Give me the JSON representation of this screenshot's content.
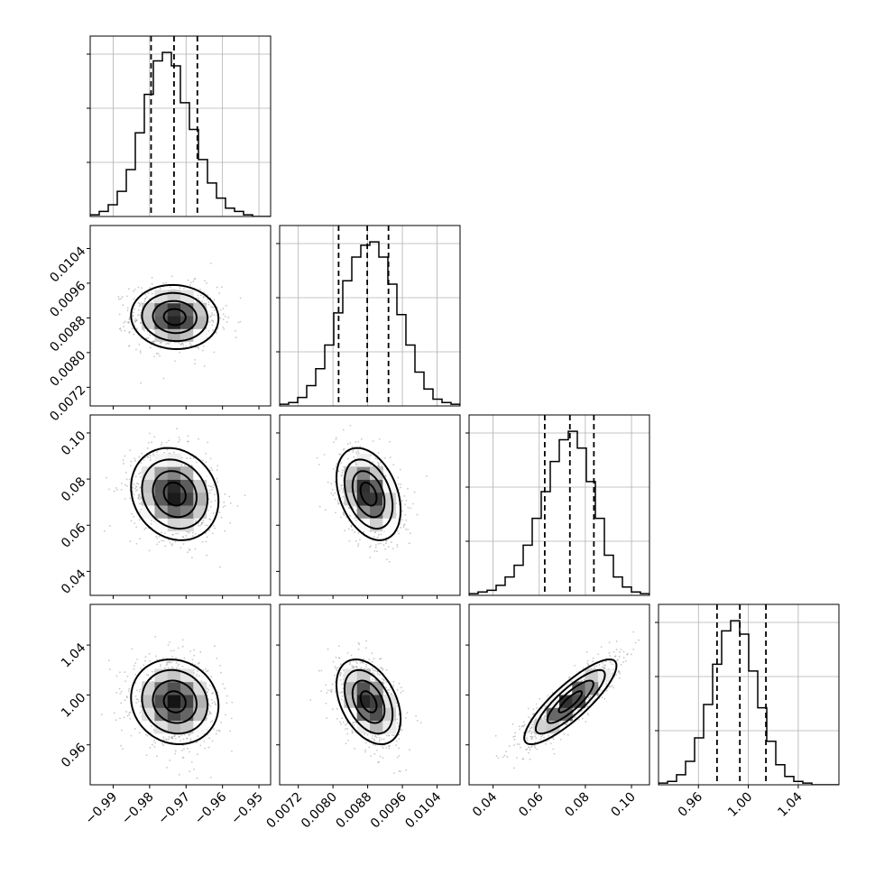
{
  "chart_data": {
    "type": "corner",
    "title": "",
    "colors": {
      "line": "#000000",
      "grid": "#b0b0b0",
      "scatter": "#9a9a9a",
      "background": "#ffffff"
    },
    "grid": true,
    "parameters": [
      {
        "index": 0,
        "label": "",
        "range": [
          -0.9963,
          -0.9468
        ],
        "ticks": [
          -0.99,
          -0.98,
          -0.97,
          -0.96,
          -0.95
        ],
        "tick_labels": [
          "−0.99",
          "−0.98",
          "−0.97",
          "−0.96",
          "−0.95"
        ],
        "mean": -0.9731,
        "sd": 0.006,
        "quantiles": [
          -0.9796,
          -0.9733,
          -0.9669
        ]
      },
      {
        "index": 1,
        "label": "",
        "range": [
          0.00677,
          0.01093
        ],
        "ticks": [
          0.0072,
          0.008,
          0.0088,
          0.0096,
          0.0104
        ],
        "tick_labels": [
          "0.0072",
          "0.0080",
          "0.0088",
          "0.0096",
          "0.0104"
        ],
        "mean": 0.00882,
        "sd": 0.00037,
        "quantiles": [
          0.00813,
          0.00879,
          0.00928
        ]
      },
      {
        "index": 2,
        "label": "",
        "range": [
          0.0296,
          0.1078
        ],
        "ticks": [
          0.04,
          0.06,
          0.08,
          0.1
        ],
        "tick_labels": [
          "0.04",
          "0.06",
          "0.08",
          "0.10"
        ],
        "mean": 0.0735,
        "sd": 0.01,
        "quantiles": [
          0.0624,
          0.0733,
          0.0837
        ]
      },
      {
        "index": 3,
        "label": "",
        "range": [
          0.928,
          1.0726
        ],
        "ticks": [
          0.96,
          1.0,
          1.04
        ],
        "tick_labels": [
          "0.96",
          "1.00",
          "1.04"
        ],
        "mean": 0.9945,
        "sd": 0.017,
        "quantiles": [
          0.9749,
          0.9932,
          1.0141
        ]
      }
    ],
    "histograms": [
      {
        "param": 0,
        "bins": 20,
        "counts": [
          1,
          3,
          7,
          15,
          28,
          50,
          73,
          93,
          98,
          90,
          68,
          52,
          34,
          20,
          11,
          5,
          3,
          1,
          0,
          0
        ]
      },
      {
        "param": 1,
        "bins": 20,
        "counts": [
          1,
          2,
          5,
          12,
          22,
          36,
          55,
          74,
          88,
          95,
          97,
          88,
          72,
          54,
          36,
          20,
          10,
          4,
          2,
          1
        ]
      },
      {
        "param": 2,
        "bins": 20,
        "counts": [
          1,
          2,
          3,
          6,
          11,
          18,
          30,
          46,
          62,
          80,
          93,
          98,
          88,
          68,
          46,
          24,
          11,
          5,
          2,
          1
        ]
      },
      {
        "param": 3,
        "bins": 20,
        "counts": [
          1,
          2,
          6,
          14,
          28,
          48,
          72,
          92,
          98,
          90,
          68,
          46,
          26,
          12,
          5,
          2,
          1,
          0,
          0,
          0
        ]
      }
    ],
    "pair_correlations": [
      {
        "x": 0,
        "y": 1,
        "rho": -0.05
      },
      {
        "x": 0,
        "y": 2,
        "rho": -0.15
      },
      {
        "x": 1,
        "y": 2,
        "rho": -0.35
      },
      {
        "x": 0,
        "y": 3,
        "rho": -0.1
      },
      {
        "x": 1,
        "y": 3,
        "rho": -0.4
      },
      {
        "x": 2,
        "y": 3,
        "rho": 0.85
      }
    ],
    "contour_levels": [
      0.5,
      1.0,
      1.5,
      2.0
    ]
  }
}
